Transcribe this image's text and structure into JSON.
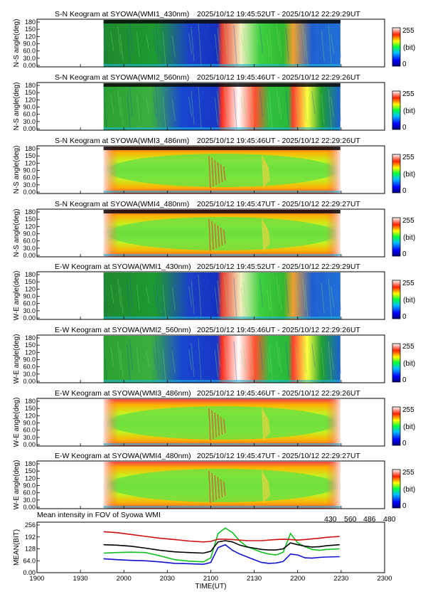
{
  "panels": [
    {
      "title": "S-N Keogram at SYOWA(WMI1_430nm)",
      "time_range": "2025/10/12 19:45:52UT - 2025/10/12 22:29:29UT",
      "ylabel": "N-S angle(deg)",
      "kind": "ns",
      "data_end": "22:29:29"
    },
    {
      "title": "S-N Keogram at SYOWA(WMI2_560nm)",
      "time_range": "2025/10/12 19:45:46UT - 2025/10/12 22:29:26UT",
      "ylabel": "N-S angle(deg)",
      "kind": "ns",
      "data_end": "22:29:26"
    },
    {
      "title": "S-N Keogram at SYOWA(WMI3_486nm)",
      "time_range": "2025/10/12 19:45:46UT - 2025/10/12 22:29:26UT",
      "ylabel": "N-S angle(deg)",
      "kind": "ns",
      "data_end": "22:29:26"
    },
    {
      "title": "S-N Keogram at SYOWA(WMI4_480nm)",
      "time_range": "2025/10/12 19:45:47UT - 2025/10/12 22:29:27UT",
      "ylabel": "N-S angle(deg)",
      "kind": "ns",
      "data_end": "22:29:27"
    },
    {
      "title": "E-W Keogram at SYOWA(WMI1_430nm)",
      "time_range": "2025/10/12 19:45:52UT - 2025/10/12 22:29:29UT",
      "ylabel": "W-E angle(deg)",
      "kind": "ew",
      "data_end": "22:29:29"
    },
    {
      "title": "E-W Keogram at SYOWA(WMI2_560nm)",
      "time_range": "2025/10/12 19:45:46UT - 2025/10/12 22:29:26UT",
      "ylabel": "W-E angle(deg)",
      "kind": "ew",
      "data_end": "22:29:26"
    },
    {
      "title": "E-W Keogram at SYOWA(WMI3_486nm)",
      "time_range": "2025/10/12 19:45:46UT - 2025/10/12 22:29:26UT",
      "ylabel": "W-E angle(deg)",
      "kind": "ew",
      "data_end": "22:29:26"
    },
    {
      "title": "E-W Keogram at SYOWA(WMI4_480nm)",
      "time_range": "2025/10/12 19:45:47UT - 2025/10/12 22:29:27UT",
      "ylabel": "W-E angle(deg)",
      "kind": "ew",
      "data_end": "22:29:27"
    }
  ],
  "keogram_yticks": [
    "0.00",
    "30.0",
    "60.0",
    "90.0",
    "120",
    "150",
    "180"
  ],
  "colorbar": {
    "max_label": "255",
    "min_label": "0",
    "unit_label": "(bit)"
  },
  "chart_data": {
    "type": "line",
    "title": "Mean intensity in FOV of Syowa WMI",
    "xlabel": "TIME(UT)",
    "ylabel": "MEAN(BIT)",
    "xlim": [
      "19:00",
      "23:00"
    ],
    "ylim": [
      0,
      256
    ],
    "x_tick_labels": [
      "1900",
      "1930",
      "2000",
      "2030",
      "2100",
      "2130",
      "2200",
      "2230",
      "2300"
    ],
    "y_tick_labels": [
      "0.00",
      "64.0",
      "128",
      "192",
      "256"
    ],
    "legend_placement": "top-right",
    "x": [
      "19:46",
      "19:55",
      "20:05",
      "20:15",
      "20:25",
      "20:35",
      "20:45",
      "20:55",
      "21:00",
      "21:05",
      "21:10",
      "21:15",
      "21:20",
      "21:25",
      "21:30",
      "21:35",
      "21:40",
      "21:45",
      "21:50",
      "21:55",
      "22:00",
      "22:05",
      "22:10",
      "22:15",
      "22:20",
      "22:29"
    ],
    "series": [
      {
        "name": "430",
        "color": "#1010d0",
        "values": [
          75,
          70,
          66,
          64,
          58,
          50,
          48,
          45,
          55,
          135,
          150,
          120,
          100,
          85,
          70,
          55,
          50,
          52,
          60,
          100,
          95,
          80,
          78,
          82,
          84,
          86
        ]
      },
      {
        "name": "560",
        "color": "#10c020",
        "values": [
          105,
          108,
          110,
          108,
          90,
          70,
          62,
          58,
          80,
          210,
          240,
          215,
          170,
          140,
          125,
          110,
          100,
          95,
          110,
          210,
          160,
          140,
          125,
          120,
          125,
          128
        ]
      },
      {
        "name": "486",
        "color": "#d01010",
        "values": [
          220,
          215,
          205,
          195,
          185,
          178,
          170,
          165,
          168,
          180,
          180,
          178,
          175,
          172,
          172,
          172,
          175,
          178,
          180,
          178,
          175,
          178,
          182,
          185,
          190,
          195
        ]
      },
      {
        "name": "480",
        "color": "#000000",
        "values": [
          150,
          148,
          142,
          132,
          120,
          112,
          108,
          105,
          115,
          165,
          172,
          165,
          148,
          138,
          132,
          125,
          122,
          122,
          128,
          160,
          150,
          142,
          138,
          140,
          145,
          150
        ]
      }
    ]
  }
}
